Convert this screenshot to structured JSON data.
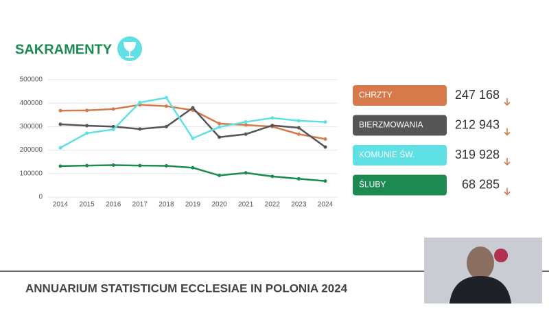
{
  "header": {
    "title": "SAKRAMENTY"
  },
  "footer": {
    "text": "ANNUARIUM STATISTICUM ECCLESIAE IN POLONIA 2024"
  },
  "chart_data": {
    "type": "line",
    "categories": [
      "2014",
      "2015",
      "2016",
      "2017",
      "2018",
      "2019",
      "2020",
      "2021",
      "2022",
      "2023",
      "2024"
    ],
    "ylim": [
      0,
      500000
    ],
    "yticks": [
      0,
      100000,
      200000,
      300000,
      400000,
      500000
    ],
    "grid": true,
    "series": [
      {
        "name": "CHRZTY",
        "color": "#d67a4c",
        "values": [
          368000,
          369000,
          375000,
          393000,
          387000,
          370000,
          313000,
          307000,
          300000,
          268000,
          247168
        ],
        "value_labels": [
          null,
          null,
          null,
          null,
          null,
          null,
          null,
          null,
          null,
          null,
          "247 168"
        ]
      },
      {
        "name": "BIERZMOWANIA",
        "color": "#555555",
        "values": [
          310000,
          304000,
          300000,
          290000,
          300000,
          380000,
          255000,
          268000,
          305000,
          295000,
          212943
        ],
        "value_labels": [
          null,
          null,
          null,
          null,
          null,
          null,
          null,
          null,
          null,
          null,
          "212 943"
        ]
      },
      {
        "name": "KOMUNIE ŚW.",
        "color": "#5ee0e4",
        "values": [
          210000,
          272000,
          288000,
          403000,
          423000,
          250000,
          298000,
          320000,
          337000,
          325000,
          319928
        ],
        "value_labels": [
          null,
          null,
          null,
          null,
          null,
          null,
          null,
          null,
          null,
          null,
          "319 928"
        ]
      },
      {
        "name": "ŚLUBY",
        "color": "#1d8a52",
        "values": [
          132000,
          134000,
          136000,
          134000,
          133000,
          125000,
          92000,
          103000,
          88000,
          78000,
          68285
        ],
        "value_labels": [
          null,
          null,
          null,
          null,
          null,
          null,
          null,
          null,
          null,
          null,
          "68 285"
        ]
      }
    ]
  }
}
